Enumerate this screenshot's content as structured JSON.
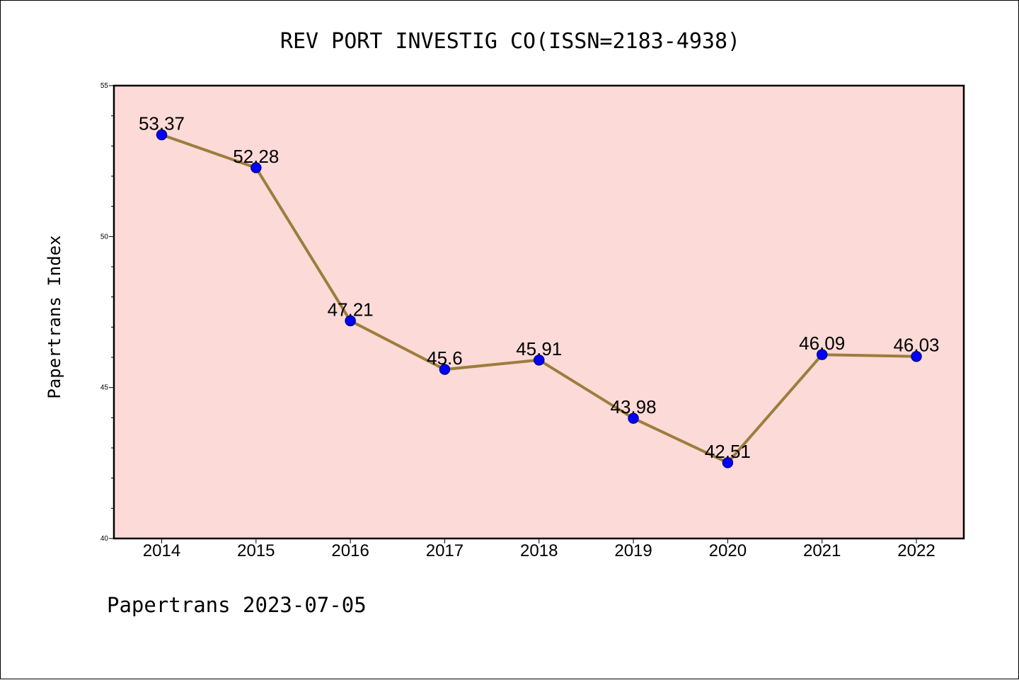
{
  "colors": {
    "plot_background": "#fcdad7",
    "line": "#9c7d3c",
    "marker_fill": "#0000ff",
    "marker_edge": "#00008b"
  },
  "footer": "Papertrans 2023-07-05",
  "chart_data": {
    "type": "line",
    "title": "REV PORT INVESTIG CO(ISSN=2183-4938)",
    "xlabel": "",
    "ylabel": "Papertrans Index",
    "x": [
      "2014",
      "2015",
      "2016",
      "2017",
      "2018",
      "2019",
      "2020",
      "2021",
      "2022"
    ],
    "y": [
      53.37,
      52.28,
      47.21,
      45.6,
      45.91,
      43.98,
      42.51,
      46.09,
      46.03
    ],
    "data_labels": [
      "53.37",
      "52.28",
      "47.21",
      "45.6",
      "45.91",
      "43.98",
      "42.51",
      "46.09",
      "46.03"
    ],
    "ylim": [
      40,
      55
    ],
    "yticks": [
      "40",
      "45",
      "50",
      "55"
    ],
    "grid": false,
    "legend": "none"
  }
}
